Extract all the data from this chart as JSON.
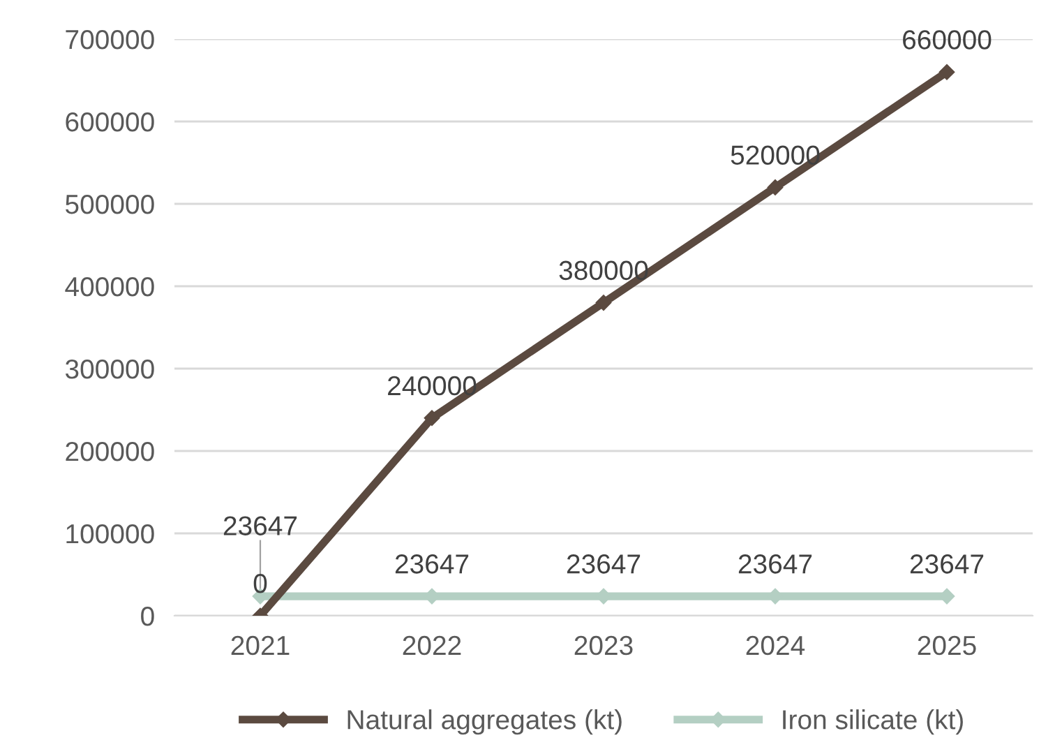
{
  "chart_data": {
    "type": "line",
    "categories": [
      "2021",
      "2022",
      "2023",
      "2024",
      "2025"
    ],
    "series": [
      {
        "name": "Natural aggregates (kt)",
        "color": "#5b4a40",
        "values": [
          0,
          240000,
          380000,
          520000,
          660000
        ]
      },
      {
        "name": "Iron silicate (kt)",
        "color": "#b4cfc3",
        "values": [
          23647,
          23647,
          23647,
          23647,
          23647
        ]
      }
    ],
    "ylim": [
      0,
      700000
    ],
    "yticks": [
      0,
      100000,
      200000,
      300000,
      400000,
      500000,
      600000,
      700000
    ],
    "grid": "y",
    "legend": "bottom",
    "marker": "diamond",
    "line_style": "solid",
    "data_labels": true
  }
}
